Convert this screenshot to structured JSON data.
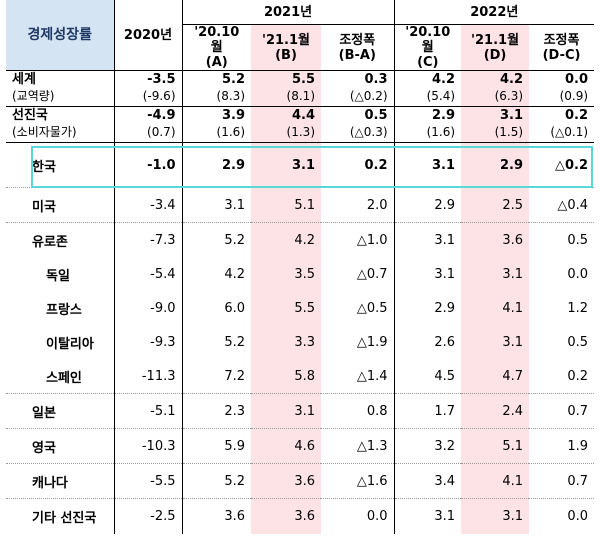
{
  "header": {
    "label": "경제성장률",
    "year2020": "2020년",
    "year2021": "2021년",
    "year2022": "2022년",
    "cols": [
      {
        "line1": "'20.10월",
        "line2": "(A)"
      },
      {
        "line1": "'21.1월",
        "line2": "(B)"
      },
      {
        "line1": "조정폭",
        "line2": "(B-A)"
      },
      {
        "line1": "'20.10월",
        "line2": "(C)"
      },
      {
        "line1": "'21.1월",
        "line2": "(D)"
      },
      {
        "line1": "조정폭",
        "line2": "(D-C)"
      }
    ]
  },
  "world": {
    "name": "세계",
    "sub": "(교역량)",
    "values": [
      "-3.5",
      "5.2",
      "5.5",
      "0.3",
      "4.2",
      "4.2",
      "0.0"
    ],
    "subvalues": [
      "(-9.6)",
      "(8.3)",
      "(8.1)",
      "(△0.2)",
      "(5.4)",
      "(6.3)",
      "(0.9)"
    ]
  },
  "advanced": {
    "name": "선진국",
    "sub": "(소비자물가)",
    "values": [
      "-4.9",
      "3.9",
      "4.4",
      "0.5",
      "2.9",
      "3.1",
      "0.2"
    ],
    "subvalues": [
      "(0.7)",
      "(1.6)",
      "(1.3)",
      "(△0.3)",
      "(1.6)",
      "(1.5)",
      "(△0.1)"
    ]
  },
  "rows": [
    {
      "name": "한국",
      "values": [
        "-1.0",
        "2.9",
        "3.1",
        "0.2",
        "3.1",
        "2.9",
        "△0.2"
      ]
    },
    {
      "name": "미국",
      "values": [
        "-3.4",
        "3.1",
        "5.1",
        "2.0",
        "2.9",
        "2.5",
        "△0.4"
      ]
    },
    {
      "name": "유로존",
      "values": [
        "-7.3",
        "5.2",
        "4.2",
        "△1.0",
        "3.1",
        "3.6",
        "0.5"
      ]
    },
    {
      "name": "독일",
      "values": [
        "-5.4",
        "4.2",
        "3.5",
        "△0.7",
        "3.1",
        "3.1",
        "0.0"
      ]
    },
    {
      "name": "프랑스",
      "values": [
        "-9.0",
        "6.0",
        "5.5",
        "△0.5",
        "2.9",
        "4.1",
        "1.2"
      ]
    },
    {
      "name": "이탈리아",
      "values": [
        "-9.3",
        "5.2",
        "3.3",
        "△1.9",
        "2.6",
        "3.1",
        "0.5"
      ]
    },
    {
      "name": "스페인",
      "values": [
        "-11.3",
        "7.2",
        "5.8",
        "△1.4",
        "4.5",
        "4.7",
        "0.2"
      ]
    },
    {
      "name": "일본",
      "values": [
        "-5.1",
        "2.3",
        "3.1",
        "0.8",
        "1.7",
        "2.4",
        "0.7"
      ]
    },
    {
      "name": "영국",
      "values": [
        "-10.3",
        "5.9",
        "4.6",
        "△1.3",
        "3.2",
        "5.1",
        "1.9"
      ]
    },
    {
      "name": "캐나다",
      "values": [
        "-5.5",
        "5.2",
        "3.6",
        "△1.6",
        "3.4",
        "4.1",
        "0.7"
      ]
    },
    {
      "name": "기타 선진국",
      "values": [
        "-2.5",
        "3.6",
        "3.6",
        "0.0",
        "3.1",
        "3.1",
        "0.0"
      ]
    }
  ],
  "colors": {
    "header_bg": "#d4e4f3",
    "highlight": "#fde2e6",
    "korea_box": "#5ad8d8"
  }
}
